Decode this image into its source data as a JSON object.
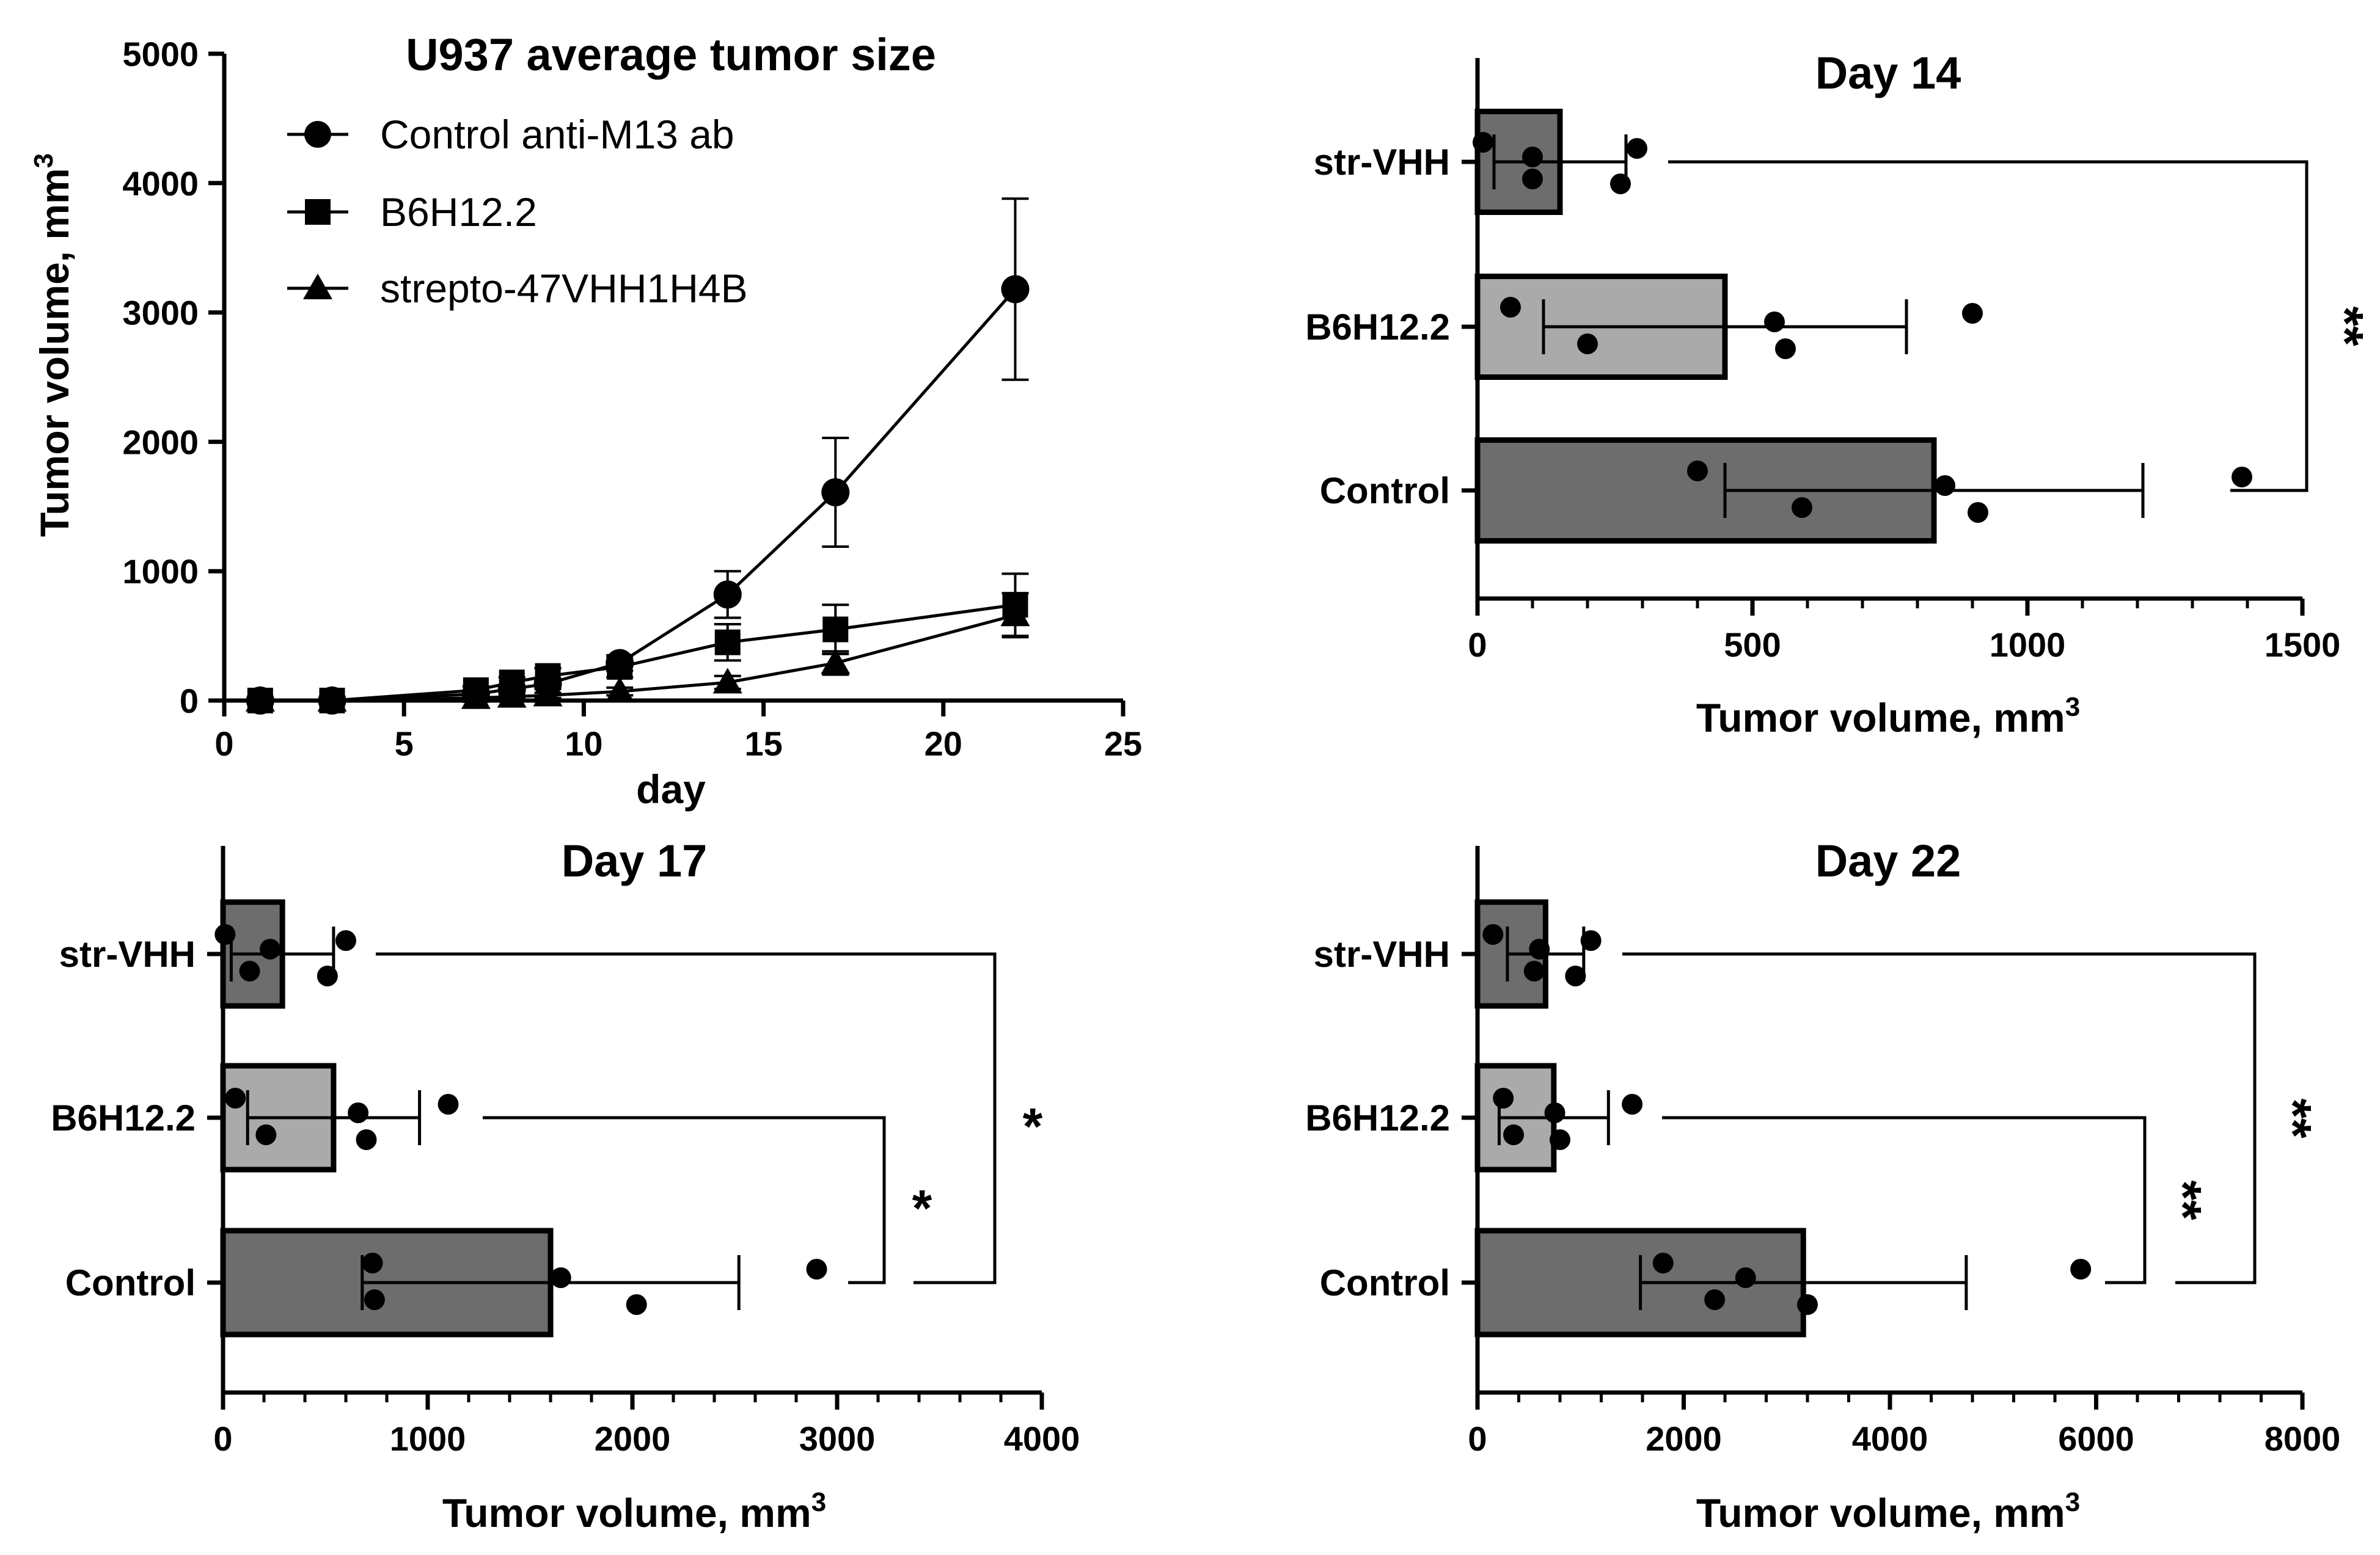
{
  "chart_data": [
    {
      "type": "line",
      "title": "U937 average tumor size",
      "xlabel": "day",
      "ylabel": "Tumor volume, mm",
      "ylabel_sup": "3",
      "xlim": [
        0,
        25
      ],
      "ylim": [
        0,
        5000
      ],
      "xticks": [
        0,
        5,
        10,
        15,
        20,
        25
      ],
      "yticks": [
        0,
        1000,
        2000,
        3000,
        4000,
        5000
      ],
      "series": [
        {
          "name": "Control anti-M13 ab",
          "marker": "circle",
          "x": [
            1,
            3,
            7,
            8,
            9,
            11,
            14,
            17,
            22
          ],
          "y": [
            0,
            0,
            50,
            90,
            130,
            290,
            820,
            1610,
            3180
          ],
          "err": [
            0,
            0,
            20,
            30,
            40,
            60,
            180,
            420,
            700
          ]
        },
        {
          "name": "B6H12.2",
          "marker": "square",
          "x": [
            1,
            3,
            7,
            8,
            9,
            11,
            14,
            17,
            22
          ],
          "y": [
            0,
            0,
            80,
            140,
            190,
            260,
            450,
            550,
            740
          ],
          "err": [
            0,
            0,
            30,
            40,
            60,
            80,
            140,
            190,
            240
          ]
        },
        {
          "name": "strepto-47VHH1H4B",
          "marker": "triangle",
          "x": [
            1,
            3,
            7,
            8,
            9,
            11,
            14,
            17,
            22
          ],
          "y": [
            0,
            0,
            20,
            30,
            40,
            70,
            140,
            290,
            660
          ],
          "err": [
            0,
            0,
            10,
            15,
            20,
            30,
            50,
            90,
            170
          ]
        }
      ]
    },
    {
      "type": "bar",
      "orientation": "horizontal",
      "title": "Day 14",
      "xlabel": "Tumor volume, mm",
      "xlabel_sup": "3",
      "xlim": [
        0,
        1500
      ],
      "xticks": [
        0,
        500,
        1000,
        1500
      ],
      "minor_step": 100,
      "categories": [
        "str-VHH",
        "B6H12.2",
        "Control"
      ],
      "values": [
        150,
        450,
        830
      ],
      "err": [
        120,
        330,
        380
      ],
      "points": [
        [
          10,
          100,
          100,
          260,
          290
        ],
        [
          60,
          200,
          540,
          560,
          900
        ],
        [
          400,
          590,
          850,
          910,
          1390
        ]
      ],
      "significance": [
        {
          "from": "str-VHH",
          "to": "Control",
          "label": "**"
        }
      ]
    },
    {
      "type": "bar",
      "orientation": "horizontal",
      "title": "Day 17",
      "xlabel": "Tumor volume, mm",
      "xlabel_sup": "3",
      "xlim": [
        0,
        4000
      ],
      "xticks": [
        0,
        1000,
        2000,
        3000,
        4000
      ],
      "minor_step": 200,
      "categories": [
        "str-VHH",
        "B6H12.2",
        "Control"
      ],
      "values": [
        290,
        540,
        1600
      ],
      "err": [
        250,
        420,
        920
      ],
      "points": [
        [
          10,
          130,
          230,
          510,
          600
        ],
        [
          60,
          210,
          660,
          700,
          1100
        ],
        [
          730,
          740,
          1650,
          2020,
          2900
        ]
      ],
      "significance": [
        {
          "from": "B6H12.2",
          "to": "Control",
          "label": "*"
        },
        {
          "from": "str-VHH",
          "to": "Control",
          "label": "*"
        }
      ]
    },
    {
      "type": "bar",
      "orientation": "horizontal",
      "title": "Day 22",
      "xlabel": "Tumor volume, mm",
      "xlabel_sup": "3",
      "xlim": [
        0,
        8000
      ],
      "xticks": [
        0,
        2000,
        4000,
        6000,
        8000
      ],
      "minor_step": 400,
      "categories": [
        "str-VHH",
        "B6H12.2",
        "Control"
      ],
      "values": [
        660,
        740,
        3160
      ],
      "err": [
        370,
        530,
        1580
      ],
      "points": [
        [
          150,
          550,
          600,
          950,
          1100
        ],
        [
          250,
          350,
          750,
          800,
          1500
        ],
        [
          1800,
          2300,
          2600,
          3200,
          5850
        ]
      ],
      "significance": [
        {
          "from": "B6H12.2",
          "to": "Control",
          "label": "**"
        },
        {
          "from": "str-VHH",
          "to": "Control",
          "label": "**"
        }
      ]
    }
  ]
}
